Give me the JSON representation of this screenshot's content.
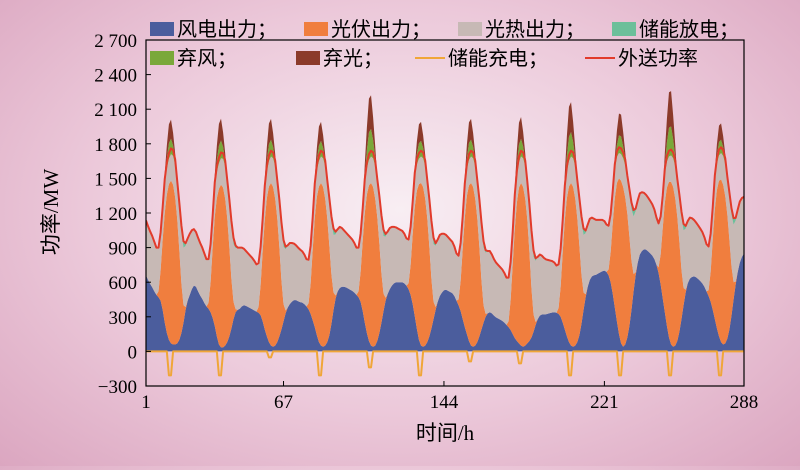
{
  "chart_data": {
    "type": "area",
    "xlabel": "时间/h",
    "ylabel": "功率/MW",
    "xticks": [
      1,
      67,
      144,
      221,
      288
    ],
    "xlim": [
      1,
      288
    ],
    "yticks": [
      -300,
      0,
      300,
      600,
      900,
      1200,
      1500,
      1800,
      2100,
      2400,
      2700
    ],
    "ytick_labels": [
      "−300",
      "0",
      "300",
      "600",
      "900",
      "1 200",
      "1 500",
      "1 800",
      "2 100",
      "2 400",
      "2 700"
    ],
    "ylim": [
      -300,
      2700
    ],
    "legend_position": "top",
    "stacked": true,
    "days": 12,
    "hours_per_day": 24,
    "profile_hours": [
      0,
      2,
      4,
      5,
      6,
      7,
      8,
      9,
      10,
      11,
      12,
      13,
      14,
      15,
      16,
      17,
      18,
      19,
      20,
      21,
      22,
      23,
      24
    ],
    "series": [
      {
        "name": "风电出力",
        "key": "wind",
        "color": "#4b5d9d",
        "daily_levels": [
          [
            680,
            600,
            540,
            500,
            480,
            460,
            420,
            300,
            200,
            120,
            80,
            60,
            60,
            60,
            80,
            120,
            200,
            300,
            420,
            460,
            520,
            560,
            580
          ],
          [
            580,
            500,
            440,
            400,
            380,
            360,
            320,
            260,
            180,
            80,
            40,
            30,
            40,
            60,
            100,
            160,
            240,
            320,
            360,
            360,
            380,
            400,
            400
          ],
          [
            400,
            380,
            360,
            350,
            340,
            330,
            300,
            220,
            160,
            100,
            60,
            40,
            40,
            60,
            100,
            160,
            220,
            300,
            360,
            400,
            420,
            440,
            450
          ],
          [
            450,
            430,
            420,
            400,
            380,
            350,
            300,
            240,
            180,
            100,
            60,
            40,
            40,
            60,
            100,
            180,
            300,
            420,
            500,
            540,
            560,
            560,
            560
          ],
          [
            560,
            540,
            520,
            500,
            480,
            460,
            400,
            300,
            200,
            120,
            60,
            40,
            40,
            60,
            120,
            200,
            300,
            400,
            480,
            520,
            560,
            580,
            600
          ],
          [
            600,
            600,
            600,
            580,
            560,
            520,
            460,
            360,
            250,
            140,
            60,
            40,
            40,
            60,
            100,
            160,
            240,
            320,
            400,
            460,
            500,
            520,
            540
          ],
          [
            540,
            520,
            500,
            460,
            420,
            380,
            320,
            240,
            180,
            120,
            60,
            40,
            40,
            60,
            100,
            160,
            220,
            280,
            320,
            340,
            340,
            320,
            300
          ],
          [
            300,
            280,
            260,
            240,
            220,
            200,
            170,
            130,
            100,
            80,
            60,
            40,
            40,
            60,
            80,
            100,
            140,
            200,
            260,
            300,
            320,
            320,
            320
          ],
          [
            320,
            330,
            340,
            340,
            330,
            320,
            280,
            220,
            160,
            100,
            60,
            40,
            40,
            60,
            100,
            180,
            300,
            420,
            520,
            600,
            640,
            660,
            660
          ],
          [
            660,
            680,
            700,
            700,
            680,
            640,
            560,
            440,
            320,
            200,
            100,
            40,
            40,
            80,
            160,
            280,
            440,
            600,
            720,
            820,
            860,
            880,
            890
          ],
          [
            890,
            860,
            820,
            780,
            720,
            640,
            520,
            400,
            280,
            160,
            80,
            40,
            40,
            60,
            120,
            220,
            340,
            460,
            560,
            620,
            640,
            650,
            650
          ],
          [
            650,
            620,
            580,
            540,
            500,
            460,
            400,
            320,
            240,
            160,
            100,
            60,
            60,
            80,
            140,
            240,
            380,
            520,
            640,
            740,
            800,
            840,
            860
          ]
        ]
      },
      {
        "name": "光伏出力",
        "key": "pv",
        "color": "#f07e3e",
        "daily_profile": [
          0,
          0,
          0,
          0,
          0,
          100,
          420,
          800,
          1100,
          1300,
          1400,
          1420,
          1350,
          1200,
          950,
          600,
          250,
          50,
          0,
          0,
          0,
          0,
          0
        ]
      },
      {
        "name": "光热出力",
        "key": "csp",
        "color": "#c7b9b5",
        "daily_profile": [
          480,
          460,
          440,
          420,
          400,
          360,
          300,
          260,
          230,
          220,
          220,
          240,
          260,
          300,
          360,
          420,
          480,
          520,
          540,
          540,
          520,
          500,
          480
        ]
      },
      {
        "name": "储能放电",
        "key": "discharge",
        "color": "#6cbf9a"
      },
      {
        "name": "弃风",
        "key": "curtail_wind",
        "color": "#7aa83a"
      },
      {
        "name": "弃光",
        "key": "curtail_pv",
        "color": "#8b3a2a"
      },
      {
        "name": "储能充电",
        "key": "charge",
        "color": "#f0a638",
        "daily_peak_charge": [
          -240,
          -240,
          -60,
          -240,
          -160,
          -240,
          -100,
          -120,
          -240,
          -240,
          -240,
          -240
        ]
      },
      {
        "name": "外送功率",
        "key": "export",
        "color": "#e23b2b",
        "upper_limit": 1800
      }
    ],
    "midday_surplus_peaks": [
      2150,
      2200,
      2180,
      2150,
      2420,
      2150,
      2180,
      2200,
      2350,
      2200,
      2450,
      2100
    ]
  }
}
